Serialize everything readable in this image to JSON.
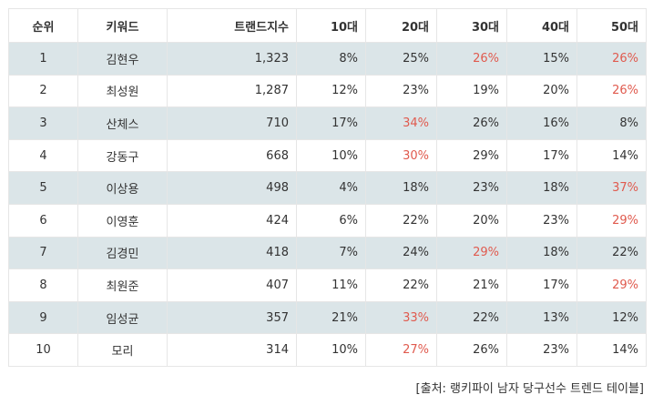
{
  "table": {
    "columns": [
      "순위",
      "키워드",
      "트랜드지수",
      "10대",
      "20대",
      "30대",
      "40대",
      "50대"
    ],
    "rows": [
      {
        "rank": "1",
        "keyword": "김현우",
        "index": "1,323",
        "a10": "8%",
        "a20": "25%",
        "a30": "26%",
        "a40": "15%",
        "a50": "26%",
        "hl": [
          "a30",
          "a50"
        ]
      },
      {
        "rank": "2",
        "keyword": "최성원",
        "index": "1,287",
        "a10": "12%",
        "a20": "23%",
        "a30": "19%",
        "a40": "20%",
        "a50": "26%",
        "hl": [
          "a50"
        ]
      },
      {
        "rank": "3",
        "keyword": "산체스",
        "index": "710",
        "a10": "17%",
        "a20": "34%",
        "a30": "26%",
        "a40": "16%",
        "a50": "8%",
        "hl": [
          "a20"
        ]
      },
      {
        "rank": "4",
        "keyword": "강동구",
        "index": "668",
        "a10": "10%",
        "a20": "30%",
        "a30": "29%",
        "a40": "17%",
        "a50": "14%",
        "hl": [
          "a20"
        ]
      },
      {
        "rank": "5",
        "keyword": "이상용",
        "index": "498",
        "a10": "4%",
        "a20": "18%",
        "a30": "23%",
        "a40": "18%",
        "a50": "37%",
        "hl": [
          "a50"
        ]
      },
      {
        "rank": "6",
        "keyword": "이영훈",
        "index": "424",
        "a10": "6%",
        "a20": "22%",
        "a30": "20%",
        "a40": "23%",
        "a50": "29%",
        "hl": [
          "a50"
        ]
      },
      {
        "rank": "7",
        "keyword": "김경민",
        "index": "418",
        "a10": "7%",
        "a20": "24%",
        "a30": "29%",
        "a40": "18%",
        "a50": "22%",
        "hl": [
          "a30"
        ]
      },
      {
        "rank": "8",
        "keyword": "최원준",
        "index": "407",
        "a10": "11%",
        "a20": "22%",
        "a30": "21%",
        "a40": "17%",
        "a50": "29%",
        "hl": [
          "a50"
        ]
      },
      {
        "rank": "9",
        "keyword": "임성균",
        "index": "357",
        "a10": "21%",
        "a20": "33%",
        "a30": "22%",
        "a40": "13%",
        "a50": "12%",
        "hl": [
          "a20"
        ]
      },
      {
        "rank": "10",
        "keyword": "모리",
        "index": "314",
        "a10": "10%",
        "a20": "27%",
        "a30": "26%",
        "a40": "23%",
        "a50": "14%",
        "hl": [
          "a20"
        ]
      }
    ]
  },
  "source": "[출처: 랭키파이 남자 당구선수 트렌드 테이블]",
  "colors": {
    "highlight": "#e05a4e",
    "stripe": "#dbe5e8",
    "border": "#e6e6e6",
    "text": "#333333"
  }
}
